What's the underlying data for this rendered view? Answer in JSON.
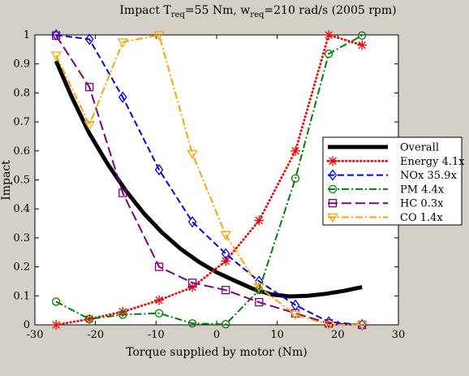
{
  "chart_data": {
    "type": "line",
    "title_parts": {
      "prefix": "Impact T",
      "treq_sub": "req",
      "middle": "=55 Nm, w",
      "wreq_sub": "req",
      "suffix": "=210 rad/s (2005 rpm)"
    },
    "xlabel": "Torque supplied by motor (Nm)",
    "ylabel": "Impact",
    "xlim": [
      -30,
      30
    ],
    "ylim": [
      0,
      1
    ],
    "xticks": [
      -30,
      -20,
      -10,
      0,
      10,
      20,
      30
    ],
    "yticks": [
      0,
      0.1,
      0.2,
      0.3,
      0.4,
      0.5,
      0.6,
      0.7,
      0.8,
      0.9,
      1
    ],
    "xtick_labels": [
      "-30",
      "-20",
      "-10",
      "0",
      "10",
      "20",
      "30"
    ],
    "ytick_labels": [
      "0",
      "0.1",
      "0.2",
      "0.3",
      "0.4",
      "0.5",
      "0.6",
      "0.7",
      "0.8",
      "0.9",
      "1"
    ],
    "grid": false,
    "legend_position": "right",
    "series": [
      {
        "name": "Overall",
        "color": "#000000",
        "style": "solid-thick",
        "marker": "none",
        "x": [
          -26.5,
          -24,
          -21,
          -18,
          -15,
          -12,
          -9,
          -6,
          -3,
          0,
          3,
          6,
          9,
          12,
          15,
          18,
          21,
          24
        ],
        "y": [
          0.91,
          0.79,
          0.66,
          0.555,
          0.463,
          0.384,
          0.318,
          0.263,
          0.218,
          0.181,
          0.152,
          0.124,
          0.105,
          0.098,
          0.1,
          0.107,
          0.117,
          0.13
        ]
      },
      {
        "name": "Energy 4.1x",
        "color": "#ff0000",
        "style": "dotted",
        "marker": "star",
        "x": [
          -26.5,
          -21,
          -15.5,
          -9.5,
          -4,
          1.5,
          7,
          13,
          18.5,
          24
        ],
        "y": [
          0.0,
          0.02,
          0.045,
          0.085,
          0.13,
          0.22,
          0.36,
          0.6,
          1.0,
          0.965
        ]
      },
      {
        "name": "NOx 35.9x",
        "color": "#0000ff",
        "style": "dashed",
        "marker": "diamond",
        "x": [
          -26.5,
          -21,
          -15.5,
          -9.5,
          -4,
          1.5,
          7,
          13,
          18.5,
          24
        ],
        "y": [
          1.0,
          0.985,
          0.785,
          0.535,
          0.355,
          0.245,
          0.15,
          0.068,
          0.01,
          0.0
        ]
      },
      {
        "name": "PM 4.4x",
        "color": "#008000",
        "style": "dashdot",
        "marker": "circle",
        "x": [
          -26.5,
          -21,
          -15.5,
          -9.5,
          -4,
          1.5,
          7,
          13,
          18.5,
          24
        ],
        "y": [
          0.08,
          0.02,
          0.035,
          0.04,
          0.005,
          0.002,
          0.12,
          0.505,
          0.935,
          0.998
        ]
      },
      {
        "name": "HC 0.3x",
        "color": "#800080",
        "style": "longdash",
        "marker": "square",
        "x": [
          -26.5,
          -21,
          -15.5,
          -9.5,
          -4,
          1.5,
          7,
          13,
          18.5,
          24
        ],
        "y": [
          0.998,
          0.82,
          0.455,
          0.2,
          0.145,
          0.12,
          0.078,
          0.04,
          0.005,
          0.0
        ]
      },
      {
        "name": "CO 1.4x",
        "color": "#ffa500",
        "style": "dashdot",
        "marker": "triangle-down",
        "x": [
          -26.5,
          -21,
          -15.5,
          -9.5,
          -4,
          1.5,
          7,
          13,
          18.5,
          24
        ],
        "y": [
          0.93,
          0.69,
          0.975,
          1.0,
          0.59,
          0.31,
          0.13,
          0.035,
          0.0,
          0.0
        ]
      }
    ]
  }
}
